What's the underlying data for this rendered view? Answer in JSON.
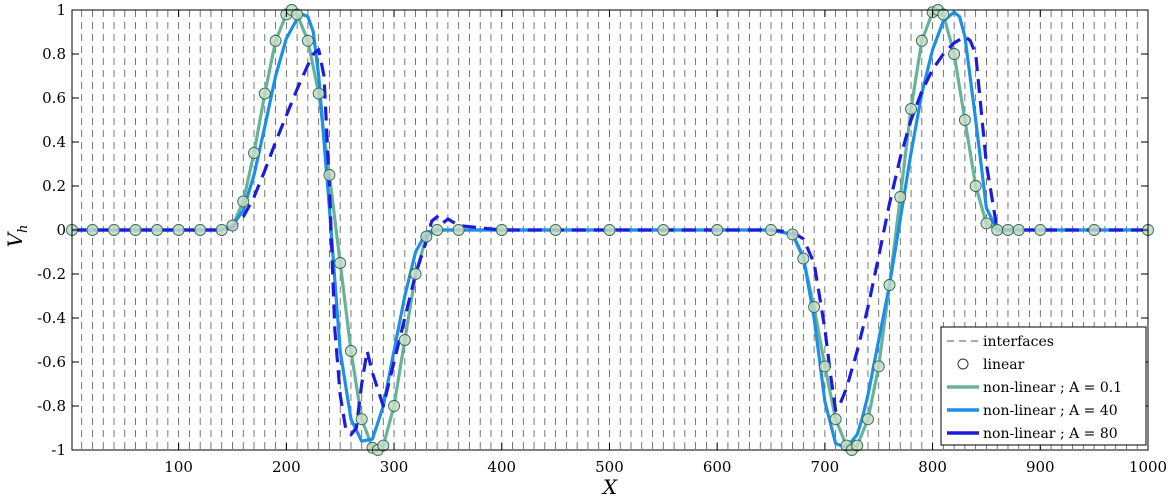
{
  "chart_data": {
    "type": "line",
    "title": "",
    "xlabel": "X",
    "ylabel": "V",
    "ylabel_sub": "h",
    "xlim": [
      1,
      1000
    ],
    "ylim": [
      -1,
      1
    ],
    "x_ticks": [
      100,
      200,
      300,
      400,
      500,
      600,
      700,
      800,
      900,
      1000
    ],
    "y_ticks": [
      -1,
      -0.8,
      -0.6,
      -0.4,
      -0.2,
      0,
      0.2,
      0.4,
      0.6,
      0.8,
      1
    ],
    "y_tick_labels": [
      "-1",
      "-0.8",
      "-0.6",
      "-0.4",
      "-0.2",
      "0",
      "0.2",
      "0.4",
      "0.6",
      "0.8",
      "1"
    ],
    "interfaces": {
      "start": 0,
      "end": 1000,
      "spacing": 10
    },
    "legend_position": "bottom-right",
    "series": [
      {
        "name": "interfaces",
        "style": "dashed-vertical",
        "color": "#555555"
      },
      {
        "name": "linear",
        "style": "markers",
        "color": "#2f6b4f",
        "fill": "#c5d9c5",
        "x": [
          1,
          20,
          40,
          60,
          80,
          100,
          120,
          140,
          150,
          160,
          170,
          180,
          190,
          200,
          205,
          210,
          220,
          230,
          240,
          250,
          260,
          270,
          280,
          285,
          290,
          300,
          310,
          320,
          330,
          340,
          360,
          400,
          450,
          500,
          550,
          600,
          650,
          670,
          680,
          690,
          700,
          710,
          720,
          725,
          730,
          740,
          750,
          760,
          770,
          780,
          790,
          800,
          805,
          810,
          820,
          830,
          840,
          850,
          860,
          870,
          880,
          900,
          950,
          1000
        ],
        "values": [
          0,
          0,
          0,
          0,
          0,
          0,
          0,
          0,
          0.02,
          0.13,
          0.35,
          0.62,
          0.86,
          0.98,
          1,
          0.98,
          0.86,
          0.62,
          0.25,
          -0.15,
          -0.55,
          -0.86,
          -0.99,
          -1,
          -0.98,
          -0.8,
          -0.5,
          -0.2,
          -0.03,
          0,
          0,
          0,
          0,
          0,
          0,
          0,
          0,
          -0.02,
          -0.13,
          -0.35,
          -0.62,
          -0.86,
          -0.98,
          -1,
          -0.98,
          -0.86,
          -0.62,
          -0.25,
          0.15,
          0.55,
          0.86,
          0.99,
          1,
          0.98,
          0.8,
          0.5,
          0.2,
          0.03,
          0,
          0,
          0,
          0,
          0,
          0
        ]
      },
      {
        "name": "non-linear ; A = 0.1",
        "style": "solid",
        "color": "#66b39a",
        "x": [
          1,
          20,
          40,
          60,
          80,
          100,
          120,
          140,
          150,
          160,
          170,
          180,
          190,
          200,
          205,
          210,
          220,
          230,
          240,
          250,
          260,
          270,
          280,
          285,
          290,
          300,
          310,
          320,
          330,
          340,
          360,
          400,
          450,
          500,
          550,
          600,
          650,
          670,
          680,
          690,
          700,
          710,
          720,
          725,
          730,
          740,
          750,
          760,
          770,
          780,
          790,
          800,
          805,
          810,
          820,
          830,
          840,
          850,
          860,
          870,
          880,
          900,
          950,
          1000
        ],
        "values": [
          0,
          0,
          0,
          0,
          0,
          0,
          0,
          0,
          0.02,
          0.13,
          0.35,
          0.62,
          0.86,
          0.98,
          1,
          0.98,
          0.86,
          0.62,
          0.25,
          -0.15,
          -0.55,
          -0.86,
          -0.99,
          -1,
          -0.98,
          -0.8,
          -0.5,
          -0.2,
          -0.03,
          0,
          0,
          0,
          0,
          0,
          0,
          0,
          0,
          -0.02,
          -0.13,
          -0.35,
          -0.62,
          -0.86,
          -0.98,
          -1,
          -0.98,
          -0.86,
          -0.62,
          -0.25,
          0.15,
          0.55,
          0.86,
          0.99,
          1,
          0.98,
          0.8,
          0.5,
          0.2,
          0.03,
          0,
          0,
          0,
          0,
          0,
          0
        ]
      },
      {
        "name": "non-linear ; A = 40",
        "style": "solid",
        "color": "#1e8fe6",
        "x": [
          1,
          40,
          80,
          120,
          140,
          150,
          160,
          170,
          180,
          190,
          200,
          210,
          215,
          220,
          225,
          230,
          240,
          250,
          260,
          270,
          280,
          290,
          300,
          310,
          320,
          330,
          340,
          360,
          400,
          450,
          500,
          550,
          600,
          650,
          670,
          680,
          690,
          700,
          710,
          720,
          730,
          735,
          740,
          750,
          760,
          770,
          780,
          790,
          800,
          810,
          820,
          825,
          830,
          840,
          850,
          860,
          870,
          880,
          900,
          950,
          1000
        ],
        "values": [
          0,
          0,
          0,
          0,
          0,
          0.02,
          0.09,
          0.25,
          0.47,
          0.7,
          0.87,
          0.96,
          0.98,
          0.97,
          0.9,
          0.7,
          0.1,
          -0.55,
          -0.86,
          -0.96,
          -0.95,
          -0.8,
          -0.55,
          -0.3,
          -0.1,
          -0.01,
          0,
          0,
          0,
          0,
          0,
          0,
          0,
          0,
          -0.02,
          -0.12,
          -0.4,
          -0.78,
          -0.97,
          -0.99,
          -0.93,
          -0.85,
          -0.75,
          -0.5,
          -0.25,
          0.05,
          0.35,
          0.62,
          0.82,
          0.95,
          0.99,
          0.97,
          0.88,
          0.5,
          0.1,
          0,
          0,
          0,
          0,
          0,
          0
        ]
      },
      {
        "name": "non-linear ; A = 80",
        "style": "dashed",
        "color": "#1c1ce0",
        "x": [
          1,
          40,
          80,
          120,
          140,
          150,
          160,
          170,
          180,
          190,
          200,
          210,
          220,
          225,
          230,
          235,
          240,
          245,
          250,
          255,
          260,
          265,
          270,
          275,
          280,
          290,
          300,
          310,
          320,
          330,
          335,
          340,
          345,
          350,
          360,
          400,
          450,
          500,
          550,
          600,
          650,
          670,
          680,
          690,
          700,
          705,
          710,
          715,
          720,
          730,
          740,
          750,
          760,
          770,
          780,
          790,
          800,
          810,
          820,
          830,
          835,
          840,
          850,
          860,
          880,
          900,
          950,
          1000
        ],
        "values": [
          0,
          0,
          0,
          0,
          0,
          0.01,
          0.06,
          0.15,
          0.27,
          0.4,
          0.52,
          0.64,
          0.75,
          0.8,
          0.82,
          0.7,
          0.2,
          -0.45,
          -0.75,
          -0.9,
          -0.93,
          -0.9,
          -0.7,
          -0.55,
          -0.65,
          -0.8,
          -0.6,
          -0.4,
          -0.2,
          -0.05,
          0.04,
          0.06,
          0.03,
          0.05,
          0.02,
          0,
          0,
          0,
          0,
          0,
          0,
          -0.01,
          -0.04,
          -0.15,
          -0.45,
          -0.65,
          -0.82,
          -0.78,
          -0.72,
          -0.55,
          -0.35,
          -0.12,
          0.12,
          0.33,
          0.5,
          0.63,
          0.73,
          0.8,
          0.85,
          0.88,
          0.86,
          0.8,
          0.3,
          0,
          0,
          0,
          0,
          0
        ]
      }
    ]
  }
}
